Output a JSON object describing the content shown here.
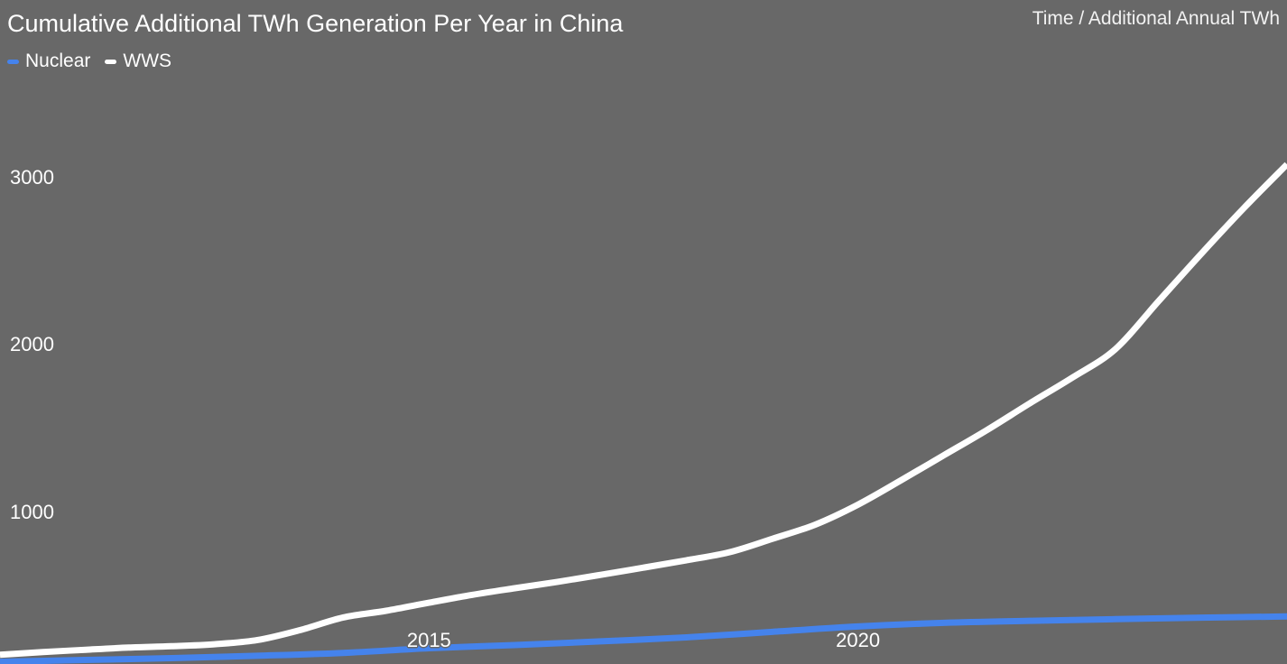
{
  "title": "Cumulative Additional TWh Generation Per Year in China",
  "axis_note": "Time / Additional Annual TWh",
  "colors": {
    "background": "#686868",
    "nuclear": "#4583ec",
    "wws": "#ffffff",
    "text": "#ffffff"
  },
  "chart_data": {
    "type": "line",
    "title": "Cumulative Additional TWh Generation Per Year in China",
    "xlabel": "Time",
    "ylabel": "Additional Annual TWh",
    "xlim": [
      2010,
      2025
    ],
    "ylim": [
      0,
      3200
    ],
    "grid": false,
    "legend_position": "top-left",
    "yticks": [
      {
        "label": "1000",
        "value": 1000
      },
      {
        "label": "2000",
        "value": 2000
      },
      {
        "label": "3000",
        "value": 3000
      }
    ],
    "xticks": [
      {
        "label": "2015",
        "value": 2015
      },
      {
        "label": "2020",
        "value": 2020
      }
    ],
    "series": [
      {
        "name": "Nuclear",
        "color": "#4583ec",
        "points": [
          [
            2010,
            105
          ],
          [
            2011,
            116
          ],
          [
            2012,
            127
          ],
          [
            2013,
            141
          ],
          [
            2014,
            158
          ],
          [
            2015,
            186
          ],
          [
            2016,
            205
          ],
          [
            2017,
            227
          ],
          [
            2018,
            251
          ],
          [
            2019,
            284
          ],
          [
            2020,
            316
          ],
          [
            2021,
            338
          ],
          [
            2022,
            350
          ],
          [
            2023,
            360
          ],
          [
            2024,
            369
          ],
          [
            2025,
            376
          ]
        ]
      },
      {
        "name": "WWS",
        "color": "#ffffff",
        "points": [
          [
            2010,
            147
          ],
          [
            2010.5,
            163
          ],
          [
            2011,
            177
          ],
          [
            2011.5,
            190
          ],
          [
            2012,
            198
          ],
          [
            2012.5,
            210
          ],
          [
            2013,
            235
          ],
          [
            2013.5,
            295
          ],
          [
            2014,
            370
          ],
          [
            2014.5,
            410
          ],
          [
            2015,
            458
          ],
          [
            2015.5,
            505
          ],
          [
            2016,
            545
          ],
          [
            2016.5,
            583
          ],
          [
            2017,
            625
          ],
          [
            2017.5,
            668
          ],
          [
            2018,
            712
          ],
          [
            2018.5,
            760
          ],
          [
            2019,
            840
          ],
          [
            2019.5,
            925
          ],
          [
            2020,
            1045
          ],
          [
            2020.5,
            1190
          ],
          [
            2021,
            1340
          ],
          [
            2021.5,
            1490
          ],
          [
            2022,
            1650
          ],
          [
            2022.5,
            1805
          ],
          [
            2023,
            1975
          ],
          [
            2023.5,
            2260
          ],
          [
            2024,
            2545
          ],
          [
            2024.5,
            2820
          ],
          [
            2025,
            3080
          ]
        ]
      }
    ]
  }
}
